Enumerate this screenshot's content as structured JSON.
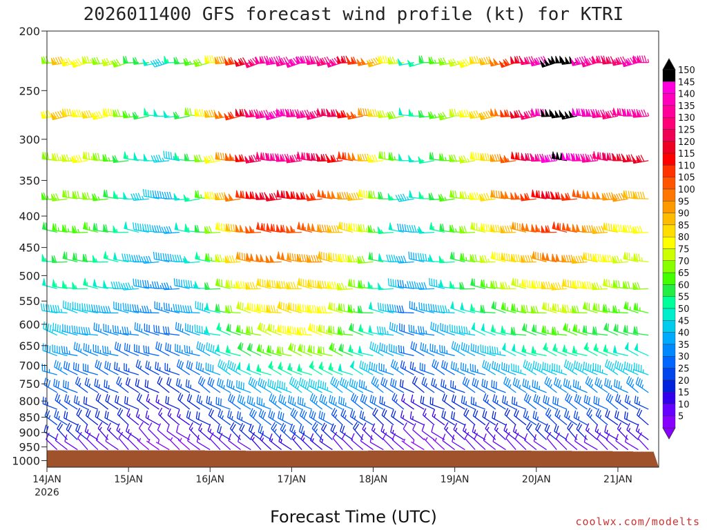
{
  "chart_data": {
    "type": "wind-barb-profile",
    "title": "2026011400 GFS forecast wind profile (kt) for KTRI",
    "xlabel": "Forecast Time (UTC)",
    "ylabel": "",
    "credit": "coolwx.com/modelts",
    "x_ticks": [
      {
        "label": "14JAN",
        "sublabel": "2026",
        "hour": 0
      },
      {
        "label": "15JAN",
        "sublabel": "",
        "hour": 24
      },
      {
        "label": "16JAN",
        "sublabel": "",
        "hour": 48
      },
      {
        "label": "17JAN",
        "sublabel": "",
        "hour": 72
      },
      {
        "label": "18JAN",
        "sublabel": "",
        "hour": 96
      },
      {
        "label": "19JAN",
        "sublabel": "",
        "hour": 120
      },
      {
        "label": "20JAN",
        "sublabel": "",
        "hour": 144
      },
      {
        "label": "21JAN",
        "sublabel": "",
        "hour": 168
      }
    ],
    "xlim_hours": [
      0,
      180
    ],
    "barb_interval_hours": 3,
    "y_ticks": [
      "200",
      "250",
      "300",
      "350",
      "400",
      "450",
      "500",
      "550",
      "600",
      "650",
      "700",
      "750",
      "800",
      "850",
      "900",
      "950",
      "1000"
    ],
    "ylim_hPa": [
      1025,
      200
    ],
    "levels_hPa": [
      225,
      275,
      325,
      375,
      425,
      475,
      525,
      575,
      625,
      675,
      725,
      775,
      825,
      875,
      925,
      960
    ],
    "wind_kt": [
      [
        75,
        70,
        90,
        80,
        80,
        75,
        70,
        75,
        70,
        60,
        60,
        50,
        45,
        55,
        60,
        65,
        70,
        80,
        95,
        110,
        120,
        130,
        135,
        140,
        135,
        140,
        140,
        135,
        130,
        135,
        120,
        110,
        100,
        90,
        80,
        75,
        50,
        55,
        60,
        65,
        70,
        75,
        80,
        85,
        90,
        100,
        110,
        120,
        130,
        140,
        150,
        150,
        150,
        140,
        135,
        130,
        125,
        130,
        140,
        135
      ],
      [
        80,
        80,
        90,
        85,
        80,
        85,
        80,
        80,
        70,
        65,
        60,
        55,
        50,
        50,
        60,
        70,
        80,
        90,
        100,
        110,
        120,
        130,
        135,
        140,
        140,
        135,
        135,
        130,
        125,
        125,
        115,
        105,
        95,
        85,
        75,
        70,
        50,
        55,
        60,
        65,
        70,
        75,
        80,
        85,
        90,
        100,
        110,
        120,
        130,
        140,
        150,
        150,
        150,
        145,
        140,
        135,
        130,
        135,
        140,
        135
      ],
      [
        70,
        70,
        75,
        75,
        80,
        75,
        70,
        65,
        60,
        55,
        50,
        50,
        45,
        45,
        55,
        60,
        70,
        80,
        95,
        105,
        115,
        125,
        130,
        135,
        135,
        130,
        130,
        125,
        120,
        115,
        110,
        100,
        90,
        80,
        70,
        65,
        50,
        50,
        55,
        60,
        65,
        70,
        75,
        80,
        85,
        95,
        105,
        115,
        125,
        135,
        145,
        150,
        145,
        140,
        135,
        130,
        125,
        120,
        120,
        120
      ],
      [
        65,
        65,
        70,
        70,
        70,
        70,
        65,
        60,
        55,
        50,
        45,
        45,
        40,
        40,
        50,
        55,
        65,
        80,
        90,
        100,
        110,
        115,
        120,
        120,
        120,
        115,
        115,
        110,
        105,
        100,
        95,
        90,
        80,
        70,
        60,
        55,
        45,
        50,
        55,
        60,
        65,
        70,
        75,
        80,
        85,
        95,
        100,
        105,
        110,
        115,
        120,
        115,
        110,
        105,
        100,
        100,
        95,
        95,
        90,
        90
      ],
      [
        60,
        60,
        65,
        65,
        65,
        65,
        60,
        60,
        55,
        50,
        45,
        45,
        40,
        40,
        50,
        55,
        60,
        70,
        80,
        90,
        100,
        105,
        110,
        110,
        110,
        105,
        105,
        100,
        95,
        90,
        85,
        80,
        75,
        65,
        55,
        50,
        40,
        45,
        50,
        55,
        60,
        65,
        70,
        75,
        80,
        85,
        90,
        95,
        100,
        105,
        110,
        110,
        105,
        100,
        95,
        90,
        85,
        80,
        80,
        80
      ],
      [
        55,
        55,
        60,
        60,
        60,
        60,
        55,
        55,
        50,
        45,
        40,
        40,
        40,
        40,
        45,
        50,
        55,
        65,
        75,
        85,
        95,
        100,
        100,
        100,
        100,
        95,
        95,
        95,
        90,
        85,
        80,
        75,
        70,
        60,
        50,
        45,
        40,
        40,
        45,
        50,
        55,
        60,
        65,
        70,
        75,
        80,
        85,
        85,
        90,
        95,
        100,
        100,
        95,
        90,
        85,
        80,
        80,
        75,
        75,
        75
      ],
      [
        50,
        50,
        55,
        55,
        55,
        55,
        50,
        50,
        45,
        45,
        40,
        35,
        35,
        35,
        40,
        45,
        50,
        60,
        70,
        75,
        80,
        85,
        85,
        85,
        85,
        85,
        85,
        85,
        85,
        80,
        75,
        70,
        65,
        55,
        50,
        45,
        35,
        40,
        40,
        45,
        50,
        55,
        60,
        60,
        65,
        70,
        75,
        75,
        80,
        80,
        85,
        85,
        85,
        80,
        80,
        75,
        75,
        70,
        70,
        70
      ],
      [
        45,
        45,
        45,
        45,
        45,
        45,
        40,
        40,
        40,
        40,
        35,
        35,
        35,
        35,
        40,
        40,
        45,
        50,
        60,
        70,
        75,
        80,
        80,
        85,
        85,
        85,
        80,
        80,
        80,
        75,
        70,
        65,
        60,
        50,
        45,
        40,
        30,
        35,
        40,
        40,
        45,
        50,
        50,
        55,
        60,
        60,
        65,
        65,
        70,
        70,
        75,
        75,
        75,
        70,
        70,
        70,
        65,
        65,
        65,
        65
      ],
      [
        45,
        45,
        45,
        40,
        40,
        40,
        35,
        35,
        35,
        35,
        35,
        30,
        30,
        30,
        35,
        40,
        45,
        50,
        55,
        60,
        65,
        70,
        75,
        75,
        80,
        80,
        80,
        80,
        75,
        70,
        65,
        60,
        55,
        50,
        45,
        40,
        30,
        35,
        35,
        40,
        40,
        45,
        45,
        50,
        50,
        55,
        55,
        60,
        60,
        60,
        65,
        65,
        65,
        65,
        60,
        60,
        60,
        60,
        60,
        60
      ],
      [
        40,
        40,
        40,
        35,
        35,
        35,
        35,
        35,
        30,
        30,
        30,
        30,
        30,
        30,
        35,
        35,
        40,
        45,
        50,
        55,
        60,
        60,
        65,
        65,
        70,
        70,
        70,
        70,
        70,
        65,
        60,
        55,
        50,
        45,
        40,
        40,
        30,
        30,
        35,
        35,
        35,
        40,
        40,
        40,
        45,
        45,
        50,
        50,
        55,
        55,
        55,
        55,
        55,
        55,
        55,
        55,
        55,
        50,
        50,
        50
      ],
      [
        35,
        35,
        35,
        30,
        30,
        30,
        30,
        30,
        25,
        25,
        25,
        25,
        25,
        25,
        30,
        30,
        35,
        40,
        45,
        45,
        50,
        50,
        55,
        55,
        55,
        55,
        55,
        55,
        55,
        55,
        50,
        50,
        45,
        40,
        35,
        35,
        25,
        25,
        30,
        30,
        30,
        35,
        35,
        35,
        40,
        40,
        40,
        45,
        45,
        45,
        45,
        45,
        45,
        45,
        45,
        45,
        45,
        45,
        45,
        45
      ],
      [
        30,
        30,
        30,
        30,
        25,
        25,
        25,
        25,
        25,
        20,
        20,
        20,
        20,
        20,
        25,
        25,
        30,
        30,
        35,
        35,
        40,
        40,
        40,
        45,
        45,
        45,
        45,
        45,
        45,
        40,
        40,
        40,
        35,
        35,
        30,
        30,
        20,
        20,
        25,
        25,
        25,
        25,
        30,
        30,
        30,
        30,
        35,
        35,
        35,
        35,
        35,
        35,
        35,
        35,
        35,
        35,
        35,
        35,
        35,
        35
      ],
      [
        25,
        25,
        25,
        25,
        25,
        20,
        20,
        20,
        20,
        20,
        20,
        15,
        15,
        20,
        20,
        20,
        25,
        25,
        30,
        30,
        35,
        35,
        35,
        35,
        35,
        35,
        35,
        35,
        35,
        35,
        35,
        30,
        30,
        30,
        25,
        25,
        15,
        15,
        20,
        20,
        20,
        20,
        25,
        25,
        25,
        25,
        25,
        25,
        30,
        30,
        30,
        30,
        30,
        30,
        30,
        30,
        30,
        25,
        25,
        25
      ],
      [
        25,
        25,
        25,
        20,
        20,
        20,
        20,
        20,
        20,
        15,
        15,
        15,
        15,
        15,
        15,
        20,
        20,
        20,
        25,
        25,
        25,
        30,
        30,
        30,
        30,
        30,
        30,
        30,
        30,
        25,
        25,
        25,
        25,
        20,
        20,
        20,
        15,
        15,
        15,
        15,
        20,
        20,
        20,
        20,
        20,
        20,
        20,
        20,
        25,
        25,
        25,
        25,
        25,
        25,
        25,
        25,
        20,
        20,
        20,
        20
      ],
      [
        20,
        20,
        20,
        20,
        20,
        15,
        15,
        15,
        15,
        15,
        10,
        10,
        10,
        10,
        10,
        15,
        15,
        15,
        20,
        20,
        20,
        20,
        25,
        25,
        25,
        25,
        25,
        25,
        20,
        20,
        20,
        20,
        15,
        15,
        15,
        15,
        10,
        10,
        10,
        10,
        15,
        15,
        15,
        15,
        15,
        15,
        15,
        15,
        20,
        20,
        20,
        20,
        20,
        20,
        15,
        15,
        15,
        15,
        15,
        15
      ],
      [
        10,
        10,
        10,
        10,
        10,
        10,
        10,
        10,
        10,
        10,
        5,
        5,
        5,
        5,
        5,
        10,
        10,
        10,
        10,
        10,
        10,
        15,
        15,
        15,
        15,
        15,
        15,
        15,
        15,
        10,
        10,
        10,
        10,
        10,
        10,
        10,
        5,
        5,
        5,
        5,
        10,
        10,
        10,
        10,
        10,
        10,
        10,
        10,
        10,
        10,
        10,
        10,
        10,
        10,
        10,
        10,
        10,
        10,
        10,
        10
      ]
    ],
    "wind_dir_deg": [
      260,
      265,
      270,
      270,
      275,
      275,
      275,
      280,
      285,
      290,
      295,
      300,
      300,
      305,
      310,
      310
    ],
    "surface_pressure_hPa": [
      962,
      962,
      962,
      962,
      962,
      962,
      962,
      962,
      962,
      962,
      962,
      962,
      962,
      962,
      962,
      962,
      963,
      963,
      963,
      963,
      964,
      964,
      964,
      964,
      964,
      964,
      964,
      964,
      964,
      964,
      964,
      964,
      963,
      963,
      963,
      963,
      963,
      963,
      963,
      963,
      963,
      963,
      963,
      963,
      963,
      963,
      963,
      963,
      964,
      964,
      964,
      964,
      965,
      965,
      965,
      965,
      966,
      966,
      967,
      967
    ],
    "ground_color": "#a0522d",
    "colorbar": {
      "min": 5,
      "max": 150,
      "step": 5,
      "labels": [
        "150",
        "145",
        "140",
        "135",
        "130",
        "125",
        "120",
        "115",
        "110",
        "105",
        "100",
        "95",
        "90",
        "85",
        "80",
        "75",
        "70",
        "65",
        "60",
        "55",
        "50",
        "45",
        "40",
        "35",
        "30",
        "25",
        "20",
        "15",
        "10",
        "5"
      ],
      "colors": [
        "#8800ff",
        "#6600ff",
        "#3300ee",
        "#0022dd",
        "#0044ee",
        "#0066ff",
        "#0088ff",
        "#00aaff",
        "#00ccee",
        "#00eecc",
        "#00ff99",
        "#22ee44",
        "#44ff00",
        "#88ff00",
        "#ccff00",
        "#ffff00",
        "#ffdd00",
        "#ffbb00",
        "#ff9900",
        "#ff7700",
        "#ff5500",
        "#ff3300",
        "#ff0000",
        "#ee0022",
        "#ee0055",
        "#ff0077",
        "#ff0099",
        "#ff00bb",
        "#ff00dd",
        "#000000"
      ]
    }
  }
}
